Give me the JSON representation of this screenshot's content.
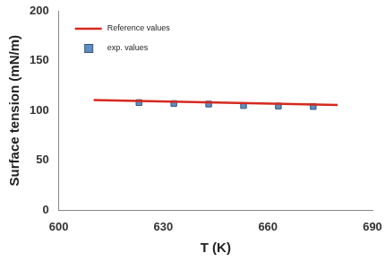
{
  "chart_data": {
    "type": "line",
    "x_label": "T (K)",
    "y_label": "Surface tension (mN/m)",
    "series": [
      {
        "name": "Reference values",
        "type": "line",
        "color": "#d42a1e",
        "line_style": "solid",
        "x": [
          610,
          680
        ],
        "values": [
          110.5,
          105.5
        ]
      },
      {
        "name": "exp. values",
        "type": "scatter",
        "color": "#5d8ec4",
        "marker": "square",
        "x": [
          623,
          633,
          643,
          653,
          663,
          673
        ],
        "values": [
          108,
          107,
          106.5,
          105,
          104.5,
          104
        ]
      }
    ],
    "xlim": [
      600,
      690
    ],
    "xticks": [
      600,
      630,
      660,
      690
    ],
    "ylim": [
      0,
      200
    ],
    "yticks": [
      0,
      50,
      100,
      150,
      200
    ],
    "grid": false,
    "legend": "upper left"
  }
}
